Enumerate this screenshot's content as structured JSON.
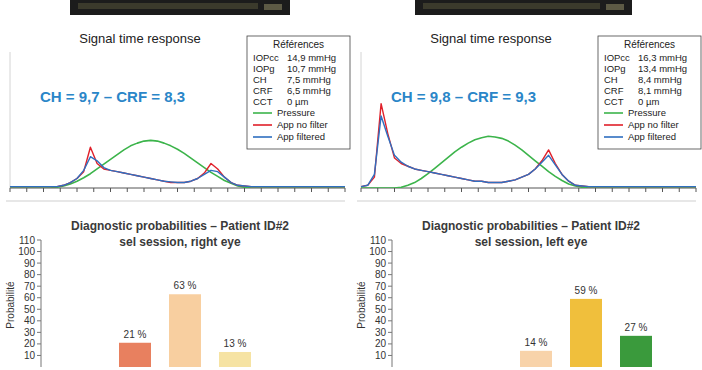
{
  "chart_data": [
    {
      "type": "line",
      "title": "Signal time response",
      "annotations": [
        "CH = 9,7 – CRF = 8,3"
      ],
      "legend_title": "Références",
      "references": [
        {
          "label": "IOPcc",
          "value": "14,9 mmHg"
        },
        {
          "label": "IOPg",
          "value": "10,7 mmHg"
        },
        {
          "label": "CH",
          "value": "7,5 mmHg"
        },
        {
          "label": "CRF",
          "value": "6,5 mmHg"
        },
        {
          "label": "CCT",
          "value": "0 µm"
        }
      ],
      "x": [
        0,
        2,
        4,
        6,
        8,
        10,
        12,
        14,
        16,
        18,
        20,
        22,
        24,
        26,
        28,
        30,
        32,
        34,
        36,
        38,
        40,
        42,
        44,
        46,
        48,
        50,
        52,
        54,
        56,
        58,
        60,
        62,
        64,
        66,
        68,
        70,
        72,
        74,
        76,
        78,
        80,
        82,
        84,
        86,
        88,
        90,
        92,
        94,
        96,
        98,
        100
      ],
      "xlim": [
        0,
        100
      ],
      "xticks": [
        0,
        5,
        10,
        15,
        20,
        25,
        30,
        35,
        40,
        45,
        50,
        55,
        60,
        65,
        70,
        75,
        80,
        85,
        90,
        95,
        100
      ],
      "ylim": [
        0,
        100
      ],
      "tick_labels": false,
      "legend": "upper right",
      "series": [
        {
          "name": "Pressure",
          "color": "#3cb44b",
          "values": [
            0,
            0,
            0,
            0,
            0,
            0,
            0,
            0.5,
            1.5,
            3,
            5,
            7.5,
            10.5,
            14,
            17.5,
            21,
            24.5,
            28,
            31,
            33,
            34.5,
            35,
            34.5,
            33,
            31,
            28.5,
            25.5,
            22,
            18.5,
            15,
            11.5,
            8.5,
            5.5,
            3.5,
            1.5,
            0.5,
            0,
            0,
            0,
            0,
            0,
            0,
            0,
            0,
            0,
            0,
            0,
            0,
            0,
            0,
            0
          ]
        },
        {
          "name": "App no filter",
          "color": "#e0202a",
          "values": [
            1,
            1,
            1,
            1,
            1,
            1,
            1,
            1,
            2,
            4,
            7,
            12,
            30,
            18,
            14,
            13,
            12,
            11,
            10,
            9,
            8,
            7,
            6,
            5,
            4,
            4,
            4,
            5,
            7,
            11,
            18,
            14,
            8,
            4,
            2,
            1.5,
            1,
            1,
            1,
            1,
            1,
            1,
            1,
            1,
            1,
            1,
            1,
            1,
            1,
            1,
            1
          ]
        },
        {
          "name": "App filtered",
          "color": "#2f6fc0",
          "values": [
            1,
            1,
            1,
            1,
            1,
            1,
            1,
            1,
            2,
            4,
            7,
            13,
            23,
            20,
            15,
            13,
            12,
            11,
            10,
            9,
            8,
            7,
            6,
            5,
            4.5,
            4,
            4,
            5,
            7,
            10,
            13,
            12,
            8,
            4,
            2,
            1.5,
            1,
            1,
            1,
            1,
            1,
            1,
            1,
            1,
            1,
            1,
            1,
            1,
            1,
            1,
            1
          ]
        }
      ]
    },
    {
      "type": "line",
      "title": "Signal time response",
      "annotations": [
        "CH = 9,8 – CRF = 9,3"
      ],
      "legend_title": "Références",
      "references": [
        {
          "label": "IOPcc",
          "value": "16,3 mmHg"
        },
        {
          "label": "IOPg",
          "value": "13,4 mmHg"
        },
        {
          "label": "CH",
          "value": "8,4 mmHg"
        },
        {
          "label": "CRF",
          "value": "8,1 mmHg"
        },
        {
          "label": "CCT",
          "value": "0 µm"
        }
      ],
      "x": [
        0,
        2,
        4,
        6,
        8,
        10,
        12,
        14,
        16,
        18,
        20,
        22,
        24,
        26,
        28,
        30,
        32,
        34,
        36,
        38,
        40,
        42,
        44,
        46,
        48,
        50,
        52,
        54,
        56,
        58,
        60,
        62,
        64,
        66,
        68,
        70,
        72,
        74,
        76,
        78,
        80,
        82,
        84,
        86,
        88,
        90,
        92,
        94,
        96,
        98,
        100
      ],
      "xlim": [
        0,
        100
      ],
      "xticks": [
        0,
        5,
        10,
        15,
        20,
        25,
        30,
        35,
        40,
        45,
        50,
        55,
        60,
        65,
        70,
        75,
        80,
        85,
        90,
        95,
        100
      ],
      "ylim": [
        0,
        100
      ],
      "tick_labels": false,
      "legend": "upper right",
      "series": [
        {
          "name": "Pressure",
          "color": "#3cb44b",
          "values": [
            0,
            0,
            0,
            0,
            0,
            0,
            0.5,
            2,
            4,
            7,
            10.5,
            14.5,
            18.5,
            22.5,
            26.5,
            30,
            33,
            35.5,
            37,
            38,
            37.5,
            36.5,
            34.5,
            31.5,
            28,
            24,
            20,
            16,
            12,
            8.5,
            5.5,
            3,
            1.5,
            0.5,
            0,
            0,
            0,
            0,
            0,
            0,
            0,
            0,
            0,
            0,
            0,
            0,
            0,
            0,
            0,
            0,
            0
          ]
        },
        {
          "name": "App no filter",
          "color": "#e0202a",
          "values": [
            1,
            2,
            8,
            62,
            40,
            22,
            18,
            16,
            14,
            13,
            12,
            11,
            10,
            9,
            8,
            7,
            6,
            5,
            5,
            4,
            4,
            4,
            5,
            6,
            8,
            10,
            14,
            20,
            28,
            18,
            10,
            5,
            2,
            1.5,
            1,
            1,
            1,
            1,
            1,
            1,
            1,
            1,
            1,
            1,
            1,
            1,
            1,
            1,
            1,
            1,
            1
          ]
        },
        {
          "name": "App filtered",
          "color": "#2f6fc0",
          "values": [
            1,
            2,
            10,
            53,
            38,
            24,
            19,
            16,
            14,
            13,
            12,
            11,
            10,
            9,
            8,
            7,
            6,
            5,
            5,
            4,
            4,
            4,
            5,
            6,
            8,
            10,
            14,
            19,
            24,
            17,
            10,
            5,
            2,
            1.5,
            1,
            1,
            1,
            1,
            1,
            1,
            1,
            1,
            1,
            1,
            1,
            1,
            1,
            1,
            1,
            1,
            1
          ]
        }
      ]
    },
    {
      "type": "bar",
      "title": "Diagnostic probabilities – Patient ID#2",
      "subtitle": "sel session, right eye",
      "ylabel": "Probabilité",
      "categories": [
        null,
        null,
        null,
        null
      ],
      "values": [
        21,
        63,
        13,
        0
      ],
      "value_labels": [
        "21 %",
        "63 %",
        "13 %",
        null
      ],
      "colors": [
        "#e8805f",
        "#f8cfa0",
        "#f6e3a3",
        "#3a9a3c"
      ],
      "ylim": [
        0,
        110
      ],
      "yticks": [
        10,
        20,
        30,
        40,
        50,
        60,
        70,
        80,
        90,
        100,
        110
      ],
      "data_labels": true
    },
    {
      "type": "bar",
      "title": "Diagnostic probabilities – Patient ID#2",
      "subtitle": "sel session, left eye",
      "ylabel": "Probabilité",
      "categories": [
        null,
        null,
        null,
        null
      ],
      "values": [
        0,
        14,
        59,
        27
      ],
      "value_labels": [
        null,
        "14 %",
        "59 %",
        "27 %"
      ],
      "colors": [
        "#e8805f",
        "#f8d3aa",
        "#f0bf3c",
        "#3a9a3c"
      ],
      "ylim": [
        0,
        110
      ],
      "yticks": [
        10,
        20,
        30,
        40,
        50,
        60,
        70,
        80,
        90,
        100,
        110
      ],
      "data_labels": true
    }
  ]
}
